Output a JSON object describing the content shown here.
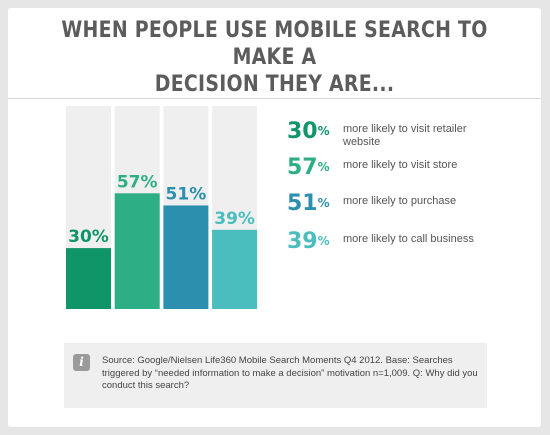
{
  "title_line1": "WHEN PEOPLE USE MOBILE SEARCH TO MAKE A",
  "title_line2": "DECISION THEY ARE...",
  "chart_data": {
    "type": "bar",
    "categories": [
      "more likely to visit retailer website",
      "more likely to visit store",
      "more likely to purchase",
      "more likely to call business"
    ],
    "values": [
      30,
      57,
      51,
      39
    ],
    "labels": [
      "30%",
      "57%",
      "51%",
      "39%"
    ],
    "ylim": [
      0,
      100
    ],
    "title": "WHEN PEOPLE USE MOBILE SEARCH TO MAKE A DECISION THEY ARE...",
    "colors": [
      "#0f9568",
      "#2eae85",
      "#2d8fae",
      "#4abdbf"
    ],
    "track_color": "#efefef",
    "grid": false,
    "legend_placement": "right"
  },
  "legend": [
    {
      "pct": "30",
      "unit": "%",
      "text": "more likely to visit retailer website",
      "color": "#0f9568"
    },
    {
      "pct": "57",
      "unit": "%",
      "text": "more likely to visit store",
      "color": "#2eae85"
    },
    {
      "pct": "51",
      "unit": "%",
      "text": "more likely to purchase",
      "color": "#2d8fae"
    },
    {
      "pct": "39",
      "unit": "%",
      "text": "more likely to call business",
      "color": "#4abdbf"
    }
  ],
  "source_icon": "info-icon",
  "source": {
    "icon_glyph": "i",
    "text": "Source: Google/Nielsen Life360 Mobile Search Moments Q4 2012. Base: Searches triggered by “needed information to make a decision” motivation n=1,009. Q: Why did you conduct this search?"
  }
}
